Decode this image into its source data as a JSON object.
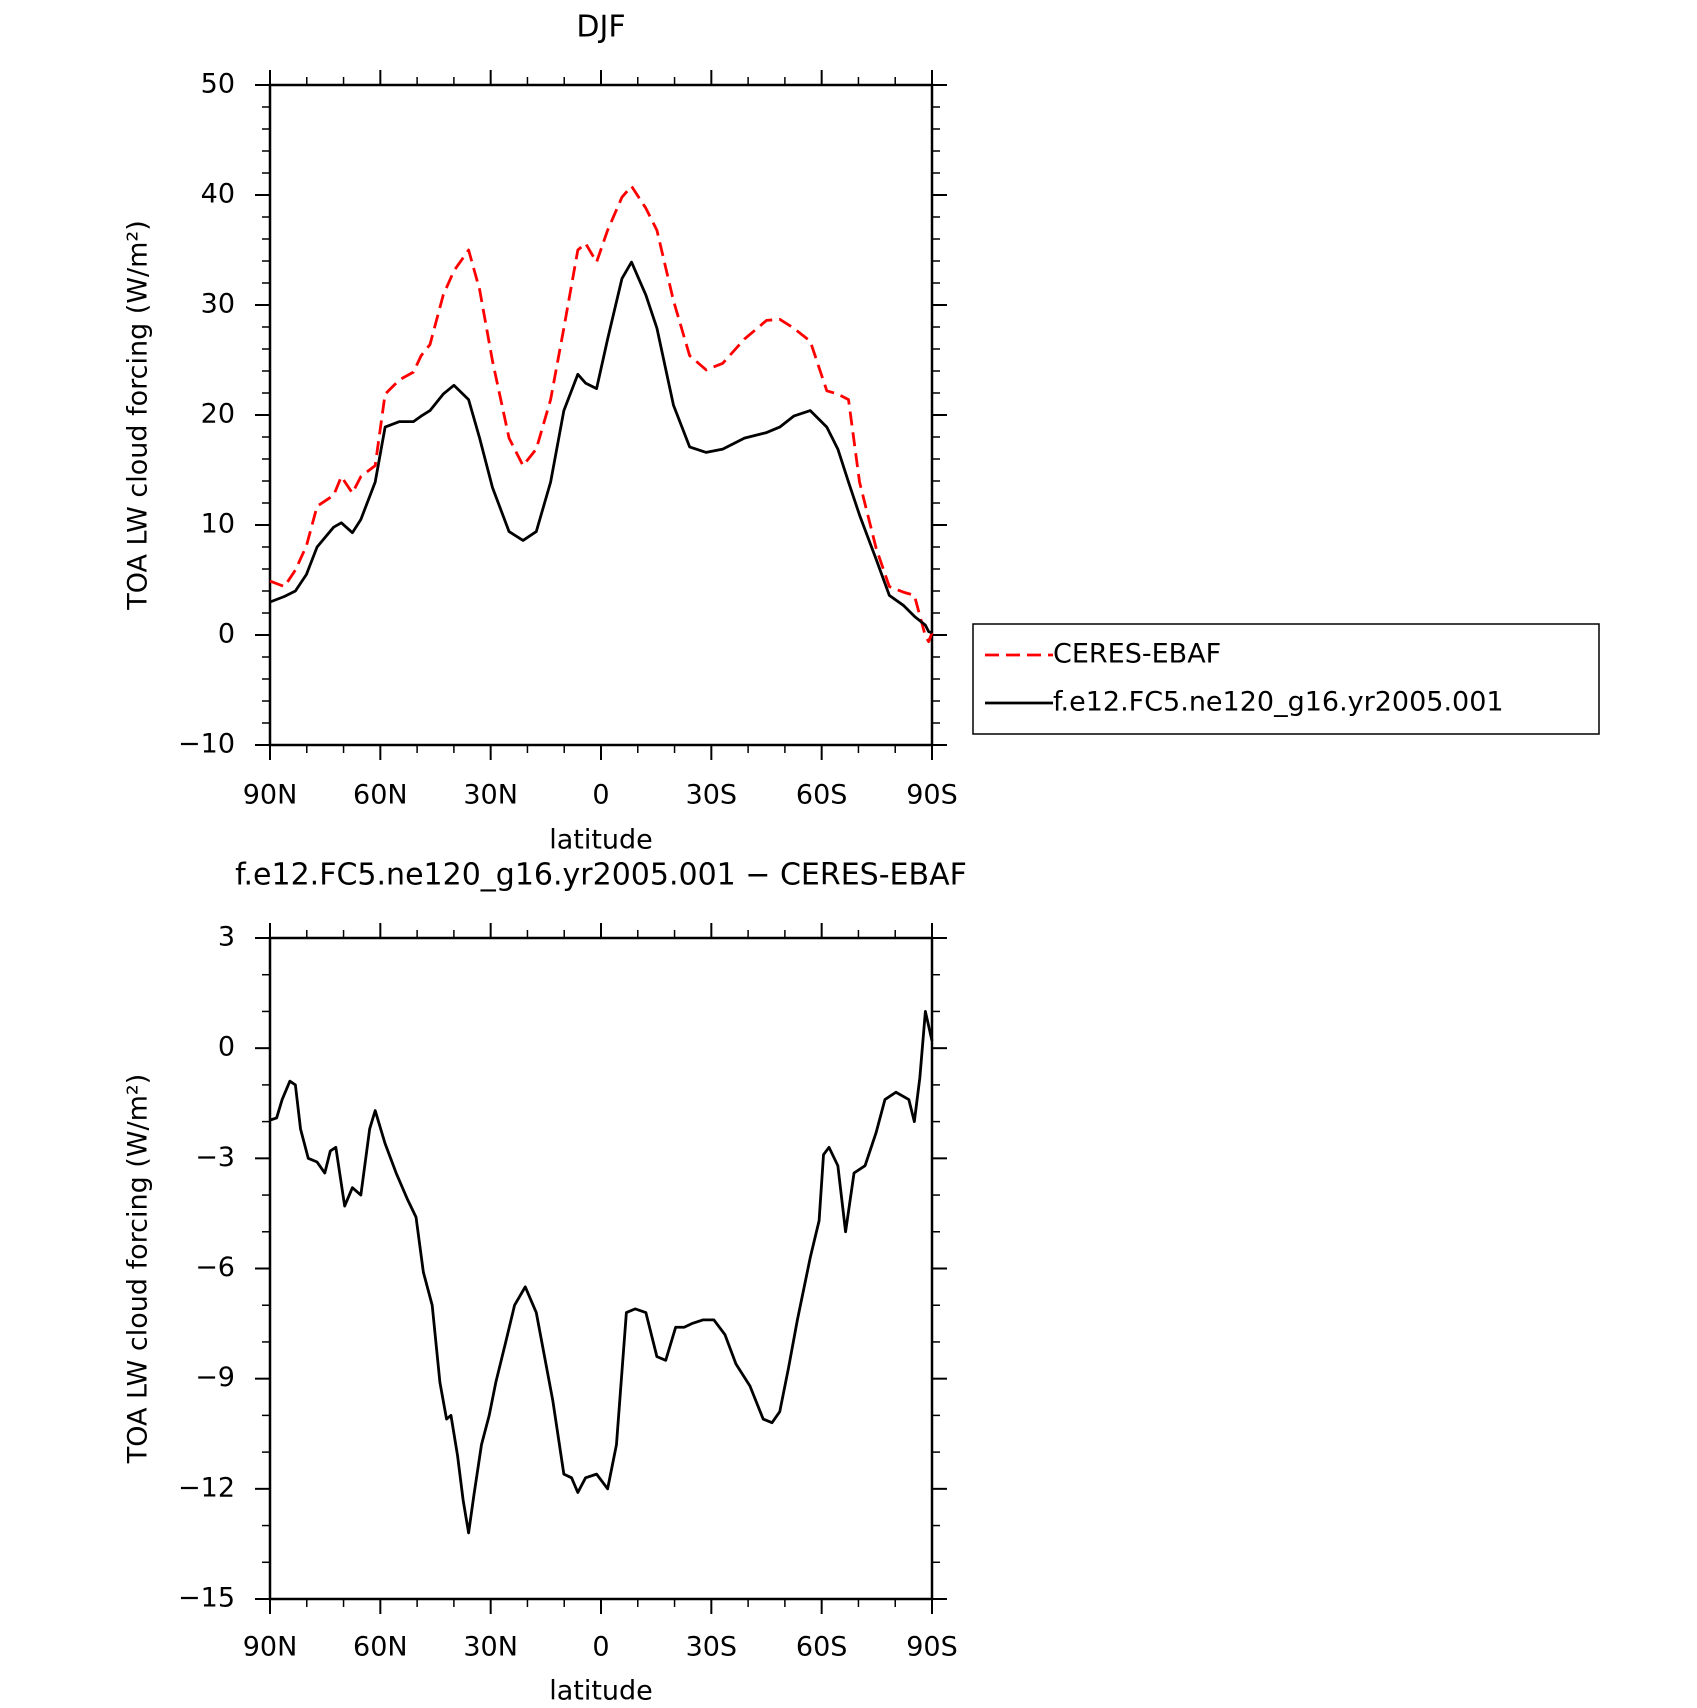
{
  "chart_data": [
    {
      "type": "line",
      "title": "DJF",
      "x_label": "latitude",
      "y_label": "TOA LW cloud forcing (W/m²)",
      "x": [
        90,
        86.1,
        83.1,
        80.1,
        77.2,
        72.7,
        70.6,
        67.6,
        65.3,
        61.4,
        58.7,
        54.8,
        51.0,
        48.9,
        46.5,
        42.9,
        40.0,
        36.0,
        33.0,
        29.5,
        25.0,
        21.2,
        17.6,
        13.7,
        10.1,
        6.3,
        4.2,
        1.2,
        -1.8,
        -5.7,
        -8.3,
        -12.2,
        -15.2,
        -19.7,
        -24.1,
        -28.6,
        -33.1,
        -39.0,
        -45.0,
        -48.6,
        -52.4,
        -56.9,
        -61.4,
        -64.4,
        -67.3,
        -70.3,
        -74.8,
        -78.4,
        -82.2,
        -85.2,
        -88.2,
        -89.1,
        -90
      ],
      "series": [
        {
          "name": "CERES-EBAF",
          "color": "#ff0000",
          "style": "dashed",
          "values": [
            4.9,
            4.4,
            5.9,
            8.1,
            11.7,
            12.7,
            14.4,
            12.9,
            14.4,
            15.4,
            21.9,
            23.2,
            23.9,
            25.4,
            26.4,
            30.9,
            33.1,
            35.0,
            31.4,
            24.9,
            17.9,
            15.4,
            16.9,
            21.4,
            27.9,
            35.0,
            35.6,
            33.9,
            36.8,
            39.8,
            40.8,
            38.8,
            36.8,
            30.4,
            25.4,
            24.1,
            24.7,
            26.9,
            28.6,
            28.7,
            27.9,
            26.7,
            22.2,
            21.9,
            21.4,
            13.9,
            7.9,
            4.4,
            3.9,
            3.6,
            -0.1,
            -0.6,
            0.2
          ]
        },
        {
          "name": "f.e12.FC5.ne120_g16.yr2005.001",
          "color": "#000000",
          "style": "solid",
          "values": [
            3.0,
            3.5,
            4.0,
            5.5,
            8.0,
            9.8,
            10.2,
            9.3,
            10.5,
            13.9,
            18.9,
            19.4,
            19.4,
            19.9,
            20.4,
            21.9,
            22.7,
            21.4,
            17.9,
            13.4,
            9.4,
            8.6,
            9.4,
            13.9,
            20.4,
            23.7,
            22.9,
            22.4,
            26.9,
            32.4,
            33.9,
            30.9,
            27.9,
            20.9,
            17.1,
            16.6,
            16.9,
            17.9,
            18.4,
            18.9,
            19.9,
            20.4,
            18.9,
            16.9,
            13.9,
            10.9,
            6.9,
            3.6,
            2.7,
            1.7,
            0.9,
            0.3,
            0.2
          ]
        }
      ],
      "xlim": [
        90,
        -90
      ],
      "xticks": [
        {
          "value": 90,
          "label": "90N"
        },
        {
          "value": 60,
          "label": "60N"
        },
        {
          "value": 30,
          "label": "30N"
        },
        0,
        {
          "value": -30,
          "label": "30S"
        },
        {
          "value": -60,
          "label": "60S"
        },
        {
          "value": -90,
          "label": "90S"
        }
      ],
      "ylim": [
        -10,
        50
      ],
      "yticks": [
        {
          "value": -10,
          "label": "−10"
        },
        0,
        10,
        20,
        30,
        40,
        50
      ],
      "legend": "right"
    },
    {
      "type": "line",
      "title": "f.e12.FC5.ne120_g16.yr2005.001 − CERES-EBAF",
      "x_label": "latitude",
      "y_label": "TOA LW cloud forcing (W/m²)",
      "x": [
        90,
        88.2,
        86.7,
        84.6,
        83.1,
        81.7,
        79.6,
        77.2,
        75.1,
        73.6,
        72.1,
        69.7,
        67.6,
        65.3,
        62.9,
        61.4,
        58.7,
        55.7,
        52.7,
        50.3,
        48.3,
        45.9,
        43.8,
        42.0,
        40.8,
        39.0,
        37.5,
        36.0,
        34.6,
        32.5,
        30.4,
        28.6,
        25.9,
        23.5,
        20.6,
        17.6,
        13.1,
        10.1,
        8.0,
        6.3,
        4.2,
        1.2,
        -1.8,
        -4.2,
        -6.9,
        -9.3,
        -12.2,
        -15.2,
        -17.6,
        -20.3,
        -22.6,
        -24.7,
        -27.7,
        -30.7,
        -33.7,
        -36.7,
        -40.5,
        -44.1,
        -46.5,
        -48.6,
        -51.0,
        -53.4,
        -56.9,
        -59.3,
        -60.5,
        -62.0,
        -64.4,
        -66.5,
        -68.8,
        -71.8,
        -74.8,
        -77.2,
        -80.2,
        -83.7,
        -85.2,
        -86.7,
        -88.2,
        -90
      ],
      "series": [
        {
          "name": "f.e12.FC5.ne120_g16.yr2005.001 − CERES-EBAF",
          "color": "#000000",
          "style": "solid",
          "values": [
            -1.96,
            -1.9,
            -1.4,
            -0.9,
            -1.0,
            -2.2,
            -3.0,
            -3.1,
            -3.4,
            -2.8,
            -2.7,
            -4.3,
            -3.8,
            -4.0,
            -2.2,
            -1.7,
            -2.6,
            -3.4,
            -4.1,
            -4.6,
            -6.1,
            -7.0,
            -9.1,
            -10.1,
            -10.0,
            -11.1,
            -12.3,
            -13.2,
            -12.2,
            -10.8,
            -10.0,
            -9.1,
            -8.0,
            -7.0,
            -6.5,
            -7.2,
            -9.6,
            -11.6,
            -11.7,
            -12.1,
            -11.7,
            -11.6,
            -12.0,
            -10.8,
            -7.2,
            -7.1,
            -7.2,
            -8.4,
            -8.5,
            -7.6,
            -7.6,
            -7.5,
            -7.4,
            -7.4,
            -7.8,
            -8.6,
            -9.2,
            -10.1,
            -10.2,
            -9.9,
            -8.7,
            -7.4,
            -5.7,
            -4.7,
            -2.9,
            -2.7,
            -3.2,
            -5.0,
            -3.4,
            -3.2,
            -2.3,
            -1.4,
            -1.2,
            -1.4,
            -2.0,
            -0.8,
            1.0,
            0.2
          ]
        }
      ],
      "xlim": [
        90,
        -90
      ],
      "xticks": [
        {
          "value": 90,
          "label": "90N"
        },
        {
          "value": 60,
          "label": "60N"
        },
        {
          "value": 30,
          "label": "30N"
        },
        0,
        {
          "value": -30,
          "label": "30S"
        },
        {
          "value": -60,
          "label": "60S"
        },
        {
          "value": -90,
          "label": "90S"
        }
      ],
      "ylim": [
        -15,
        3
      ],
      "yticks": [
        {
          "value": -15,
          "label": "−15"
        },
        {
          "value": -12,
          "label": "−12"
        },
        {
          "value": -9,
          "label": "−9"
        },
        {
          "value": -6,
          "label": "−6"
        },
        {
          "value": -3,
          "label": "−3"
        },
        0,
        3
      ]
    }
  ]
}
